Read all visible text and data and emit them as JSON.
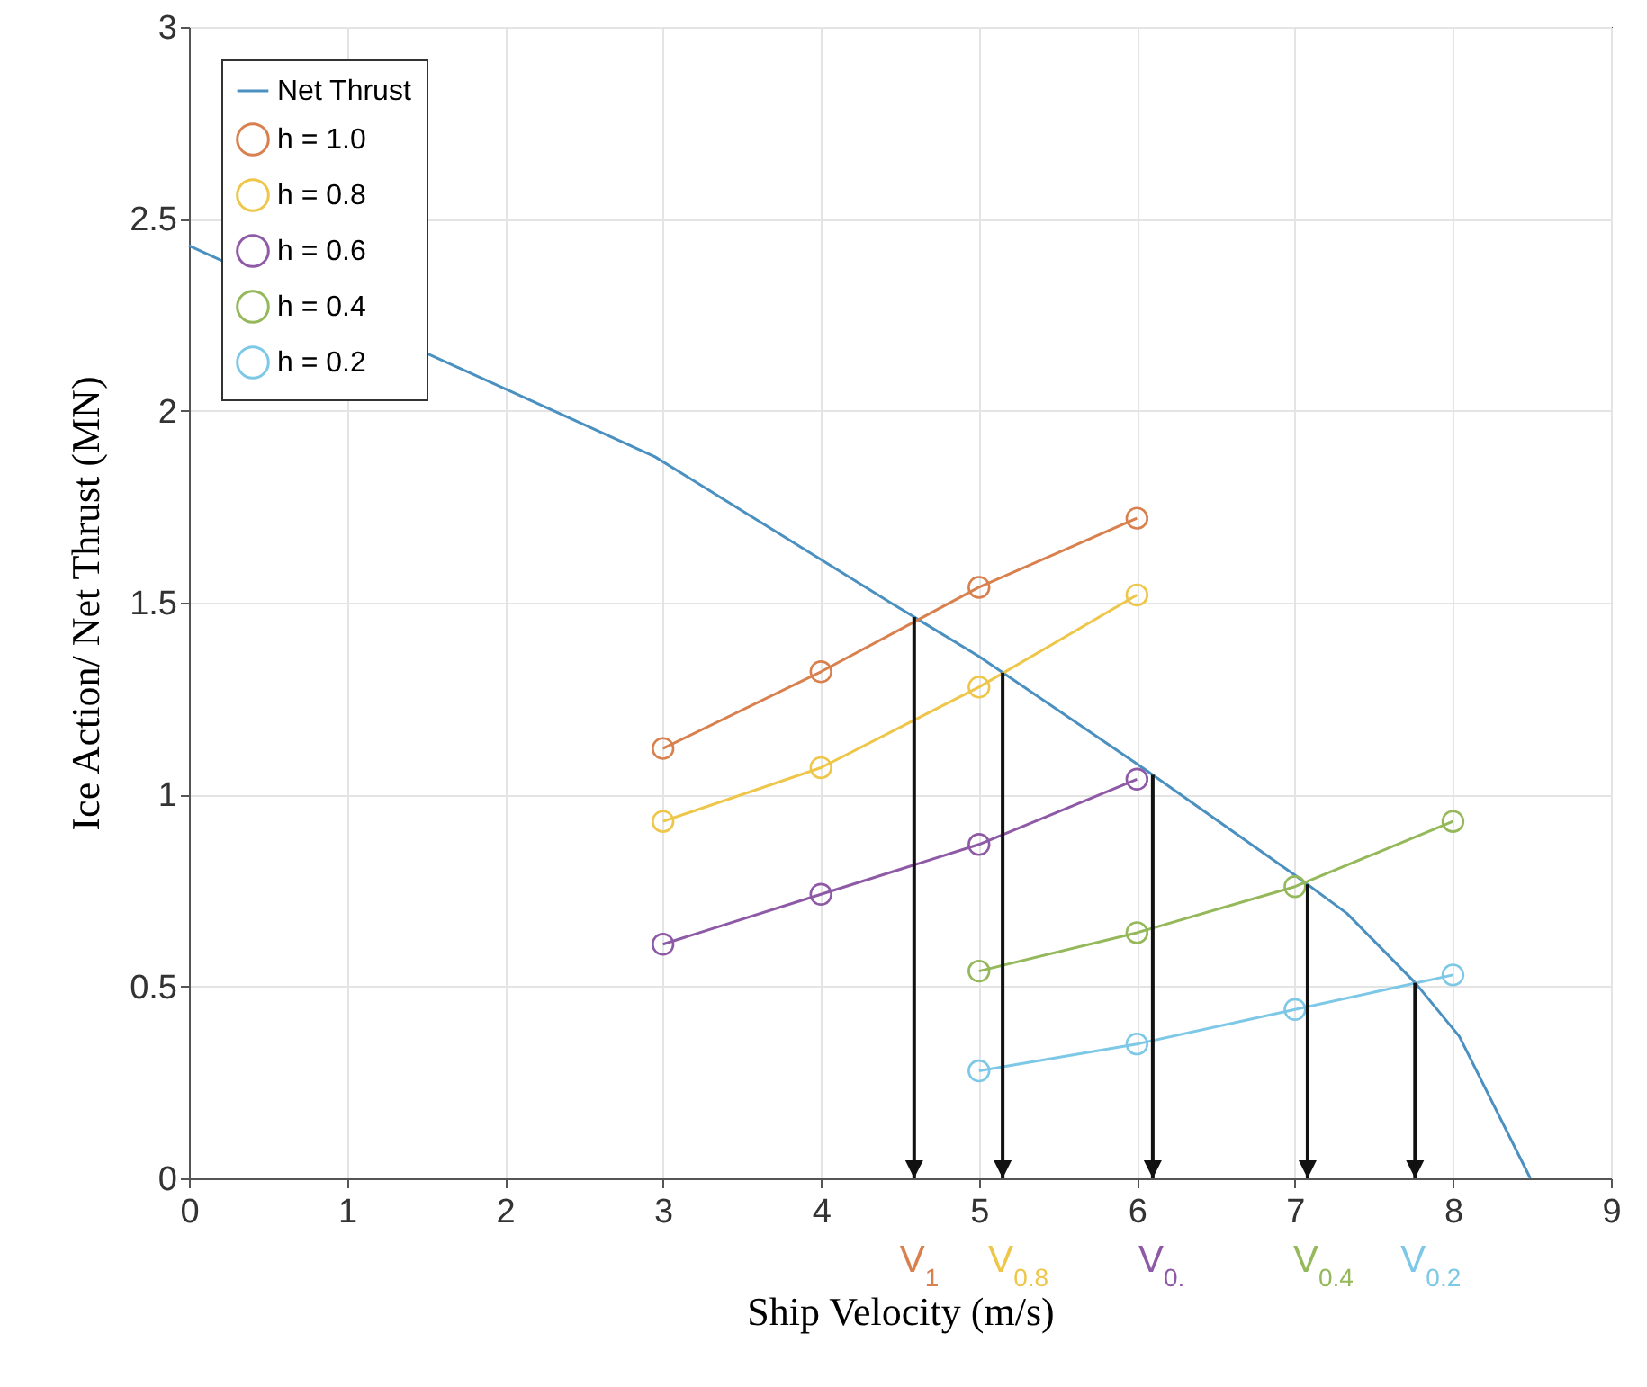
{
  "chart_data": {
    "type": "line",
    "xlabel": "Ship Velocity (m/s)",
    "ylabel": "Ice Action/ Net Thrust (MN)",
    "xlim": [
      0,
      9
    ],
    "ylim": [
      0,
      3
    ],
    "xticks": [
      0,
      1,
      2,
      3,
      4,
      5,
      6,
      7,
      8,
      9
    ],
    "yticks": [
      0,
      0.5,
      1,
      1.5,
      2,
      2.5,
      3
    ],
    "grid": true,
    "legend": "top left",
    "line_style": "solid",
    "series": [
      {
        "name": "Net Thrust",
        "color": "#4a90c0",
        "marker": "none",
        "x": [
          0,
          2.2,
          2.95,
          4.44,
          5,
          6,
          7,
          7.33,
          7.76,
          8.04,
          8.49
        ],
        "values": [
          2.43,
          2.02,
          1.88,
          1.5,
          1.36,
          1.08,
          0.79,
          0.69,
          0.51,
          0.37,
          0
        ]
      },
      {
        "name": "h = 1.0",
        "color": "#d9804f",
        "marker": "circle",
        "x": [
          3,
          4,
          5,
          6
        ],
        "values": [
          1.12,
          1.32,
          1.54,
          1.72
        ]
      },
      {
        "name": "h = 0.8",
        "color": "#edc64a",
        "marker": "circle",
        "x": [
          3,
          4,
          5,
          6
        ],
        "values": [
          0.93,
          1.07,
          1.28,
          1.52
        ]
      },
      {
        "name": "h = 0.6",
        "color": "#8e5aa6",
        "marker": "circle",
        "x": [
          3,
          4,
          5,
          6
        ],
        "values": [
          0.61,
          0.74,
          0.87,
          1.04
        ]
      },
      {
        "name": "h = 0.4",
        "color": "#94b85a",
        "marker": "circle",
        "x": [
          5,
          6,
          7,
          8
        ],
        "values": [
          0.54,
          0.64,
          0.76,
          0.93
        ]
      },
      {
        "name": "h = 0.2",
        "color": "#7dc8e6",
        "marker": "circle",
        "x": [
          5,
          6,
          7,
          8
        ],
        "values": [
          0.28,
          0.35,
          0.44,
          0.53
        ]
      }
    ],
    "ref_lines": [
      {
        "axis": "x",
        "value": 4.59,
        "label": "V$_{1}$",
        "color": "#111111"
      },
      {
        "axis": "x",
        "value": 5.15,
        "label": "V$_{0.8}$",
        "color": "#111111"
      },
      {
        "axis": "x",
        "value": 6.1,
        "label": "V$_{0.}$",
        "color": "#111111"
      },
      {
        "axis": "x",
        "value": 7.08,
        "label": "V$_{0.4}$",
        "color": "#111111"
      },
      {
        "axis": "x",
        "value": 7.76,
        "label": "V$_{0.2}$",
        "color": "#111111"
      }
    ]
  }
}
